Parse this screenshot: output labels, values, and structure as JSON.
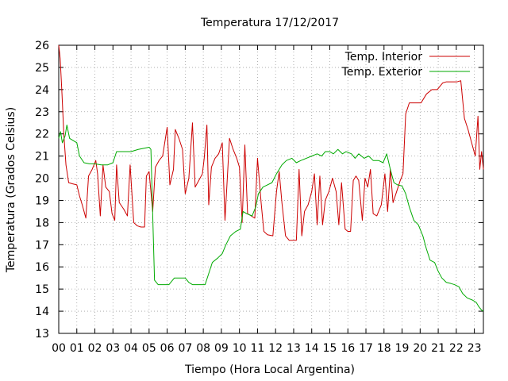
{
  "chart_data": {
    "type": "line",
    "title": "Temperatura 17/12/2017",
    "xlabel": "Tiempo (Hora Local Argentina)",
    "ylabel": "Temperatura (Grados Celsius)",
    "xlim": [
      0,
      23.5
    ],
    "ylim": [
      13,
      26
    ],
    "xticks": [
      "00",
      "01",
      "02",
      "03",
      "04",
      "05",
      "06",
      "07",
      "08",
      "09",
      "10",
      "11",
      "12",
      "13",
      "14",
      "15",
      "16",
      "17",
      "18",
      "19",
      "20",
      "21",
      "22",
      "23"
    ],
    "yticks": [
      13,
      14,
      15,
      16,
      17,
      18,
      19,
      20,
      21,
      22,
      23,
      24,
      25,
      26
    ],
    "grid": true,
    "legend_position": "top-right",
    "series": [
      {
        "name": "Temp. Interior",
        "color": "#cc0000",
        "points": [
          [
            0.0,
            26.0
          ],
          [
            0.08,
            25.4
          ],
          [
            0.18,
            23.8
          ],
          [
            0.28,
            22.0
          ],
          [
            0.4,
            20.6
          ],
          [
            0.55,
            19.8
          ],
          [
            0.75,
            19.75
          ],
          [
            1.0,
            19.7
          ],
          [
            1.15,
            19.2
          ],
          [
            1.3,
            18.8
          ],
          [
            1.5,
            18.2
          ],
          [
            1.65,
            20.1
          ],
          [
            1.85,
            20.4
          ],
          [
            2.05,
            20.8
          ],
          [
            2.15,
            20.2
          ],
          [
            2.3,
            18.3
          ],
          [
            2.45,
            20.6
          ],
          [
            2.6,
            19.6
          ],
          [
            2.8,
            19.4
          ],
          [
            2.95,
            18.4
          ],
          [
            3.1,
            18.1
          ],
          [
            3.2,
            20.6
          ],
          [
            3.35,
            18.9
          ],
          [
            3.6,
            18.6
          ],
          [
            3.8,
            18.3
          ],
          [
            3.95,
            20.6
          ],
          [
            4.15,
            18.0
          ],
          [
            4.35,
            17.85
          ],
          [
            4.55,
            17.8
          ],
          [
            4.75,
            17.8
          ],
          [
            4.85,
            20.1
          ],
          [
            5.0,
            20.3
          ],
          [
            5.2,
            18.5
          ],
          [
            5.35,
            20.5
          ],
          [
            5.55,
            20.8
          ],
          [
            5.75,
            21.0
          ],
          [
            6.0,
            22.3
          ],
          [
            6.15,
            19.7
          ],
          [
            6.35,
            20.4
          ],
          [
            6.45,
            22.2
          ],
          [
            6.65,
            21.8
          ],
          [
            6.85,
            21.3
          ],
          [
            7.0,
            19.3
          ],
          [
            7.2,
            20.0
          ],
          [
            7.4,
            22.5
          ],
          [
            7.55,
            19.6
          ],
          [
            7.75,
            19.9
          ],
          [
            7.95,
            20.2
          ],
          [
            8.05,
            20.9
          ],
          [
            8.2,
            22.4
          ],
          [
            8.3,
            18.8
          ],
          [
            8.45,
            20.5
          ],
          [
            8.65,
            20.9
          ],
          [
            8.85,
            21.1
          ],
          [
            9.05,
            21.6
          ],
          [
            9.2,
            18.1
          ],
          [
            9.45,
            21.8
          ],
          [
            9.65,
            21.3
          ],
          [
            9.85,
            20.9
          ],
          [
            10.0,
            20.5
          ],
          [
            10.15,
            18.0
          ],
          [
            10.3,
            21.5
          ],
          [
            10.45,
            18.4
          ],
          [
            10.65,
            18.3
          ],
          [
            10.85,
            18.2
          ],
          [
            11.0,
            20.9
          ],
          [
            11.2,
            18.9
          ],
          [
            11.35,
            17.6
          ],
          [
            11.55,
            17.45
          ],
          [
            11.85,
            17.4
          ],
          [
            12.05,
            19.4
          ],
          [
            12.2,
            20.3
          ],
          [
            12.35,
            18.9
          ],
          [
            12.55,
            17.4
          ],
          [
            12.75,
            17.2
          ],
          [
            12.95,
            17.2
          ],
          [
            13.15,
            17.2
          ],
          [
            13.3,
            20.4
          ],
          [
            13.45,
            17.4
          ],
          [
            13.6,
            18.5
          ],
          [
            13.8,
            18.8
          ],
          [
            14.0,
            19.4
          ],
          [
            14.15,
            20.2
          ],
          [
            14.3,
            17.9
          ],
          [
            14.45,
            20.1
          ],
          [
            14.6,
            17.9
          ],
          [
            14.75,
            19.0
          ],
          [
            14.95,
            19.4
          ],
          [
            15.15,
            20.0
          ],
          [
            15.35,
            19.4
          ],
          [
            15.5,
            17.9
          ],
          [
            15.65,
            19.8
          ],
          [
            15.85,
            17.7
          ],
          [
            16.0,
            17.6
          ],
          [
            16.15,
            17.6
          ],
          [
            16.3,
            19.9
          ],
          [
            16.45,
            20.1
          ],
          [
            16.6,
            19.9
          ],
          [
            16.8,
            18.1
          ],
          [
            16.95,
            20.0
          ],
          [
            17.1,
            19.6
          ],
          [
            17.25,
            20.4
          ],
          [
            17.4,
            18.4
          ],
          [
            17.6,
            18.3
          ],
          [
            17.85,
            18.8
          ],
          [
            18.05,
            20.2
          ],
          [
            18.2,
            18.5
          ],
          [
            18.35,
            20.4
          ],
          [
            18.5,
            18.9
          ],
          [
            18.7,
            19.4
          ],
          [
            18.9,
            19.9
          ],
          [
            19.05,
            20.2
          ],
          [
            19.2,
            22.9
          ],
          [
            19.4,
            23.4
          ],
          [
            19.75,
            23.4
          ],
          [
            20.05,
            23.4
          ],
          [
            20.35,
            23.8
          ],
          [
            20.65,
            24.0
          ],
          [
            20.95,
            24.0
          ],
          [
            21.25,
            24.3
          ],
          [
            21.45,
            24.35
          ],
          [
            21.75,
            24.35
          ],
          [
            22.05,
            24.35
          ],
          [
            22.25,
            24.4
          ],
          [
            22.45,
            22.7
          ],
          [
            22.65,
            22.2
          ],
          [
            22.85,
            21.6
          ],
          [
            23.05,
            21.0
          ],
          [
            23.2,
            22.8
          ],
          [
            23.3,
            20.4
          ],
          [
            23.4,
            21.2
          ],
          [
            23.5,
            20.4
          ]
        ]
      },
      {
        "name": "Temp. Exterior",
        "color": "#00aa00",
        "points": [
          [
            0.0,
            21.8
          ],
          [
            0.1,
            22.1
          ],
          [
            0.2,
            21.6
          ],
          [
            0.35,
            21.9
          ],
          [
            0.45,
            22.4
          ],
          [
            0.6,
            21.8
          ],
          [
            0.8,
            21.7
          ],
          [
            1.0,
            21.6
          ],
          [
            1.15,
            21.0
          ],
          [
            1.4,
            20.7
          ],
          [
            1.7,
            20.65
          ],
          [
            2.0,
            20.65
          ],
          [
            2.35,
            20.6
          ],
          [
            2.7,
            20.6
          ],
          [
            3.0,
            20.7
          ],
          [
            3.2,
            21.2
          ],
          [
            3.6,
            21.2
          ],
          [
            4.0,
            21.2
          ],
          [
            4.2,
            21.25
          ],
          [
            4.4,
            21.3
          ],
          [
            4.7,
            21.35
          ],
          [
            5.0,
            21.4
          ],
          [
            5.1,
            21.3
          ],
          [
            5.3,
            15.4
          ],
          [
            5.5,
            15.2
          ],
          [
            5.8,
            15.2
          ],
          [
            6.1,
            15.2
          ],
          [
            6.4,
            15.5
          ],
          [
            6.7,
            15.5
          ],
          [
            7.0,
            15.5
          ],
          [
            7.2,
            15.3
          ],
          [
            7.4,
            15.2
          ],
          [
            7.8,
            15.2
          ],
          [
            8.1,
            15.2
          ],
          [
            8.3,
            15.7
          ],
          [
            8.5,
            16.2
          ],
          [
            8.8,
            16.4
          ],
          [
            9.05,
            16.6
          ],
          [
            9.25,
            17.0
          ],
          [
            9.5,
            17.4
          ],
          [
            9.8,
            17.6
          ],
          [
            10.05,
            17.7
          ],
          [
            10.2,
            18.5
          ],
          [
            10.4,
            18.4
          ],
          [
            10.7,
            18.3
          ],
          [
            10.9,
            18.7
          ],
          [
            11.05,
            19.3
          ],
          [
            11.3,
            19.6
          ],
          [
            11.55,
            19.7
          ],
          [
            11.8,
            19.8
          ],
          [
            12.05,
            20.2
          ],
          [
            12.35,
            20.6
          ],
          [
            12.6,
            20.8
          ],
          [
            12.9,
            20.9
          ],
          [
            13.15,
            20.7
          ],
          [
            13.4,
            20.8
          ],
          [
            13.7,
            20.9
          ],
          [
            14.0,
            21.0
          ],
          [
            14.3,
            21.1
          ],
          [
            14.55,
            21.0
          ],
          [
            14.75,
            21.2
          ],
          [
            15.0,
            21.2
          ],
          [
            15.2,
            21.1
          ],
          [
            15.45,
            21.3
          ],
          [
            15.7,
            21.1
          ],
          [
            15.9,
            21.2
          ],
          [
            16.2,
            21.1
          ],
          [
            16.4,
            20.9
          ],
          [
            16.6,
            21.1
          ],
          [
            16.9,
            20.9
          ],
          [
            17.15,
            21.0
          ],
          [
            17.4,
            20.8
          ],
          [
            17.7,
            20.8
          ],
          [
            17.95,
            20.7
          ],
          [
            18.15,
            21.1
          ],
          [
            18.35,
            20.4
          ],
          [
            18.55,
            19.8
          ],
          [
            18.75,
            19.7
          ],
          [
            19.0,
            19.65
          ],
          [
            19.2,
            19.3
          ],
          [
            19.4,
            18.7
          ],
          [
            19.65,
            18.1
          ],
          [
            19.9,
            17.9
          ],
          [
            20.15,
            17.4
          ],
          [
            20.35,
            16.8
          ],
          [
            20.55,
            16.3
          ],
          [
            20.8,
            16.2
          ],
          [
            21.0,
            15.8
          ],
          [
            21.2,
            15.5
          ],
          [
            21.45,
            15.3
          ],
          [
            21.7,
            15.25
          ],
          [
            21.9,
            15.2
          ],
          [
            22.15,
            15.1
          ],
          [
            22.35,
            14.8
          ],
          [
            22.6,
            14.6
          ],
          [
            22.9,
            14.5
          ],
          [
            23.1,
            14.4
          ],
          [
            23.25,
            14.2
          ],
          [
            23.4,
            14.05
          ],
          [
            23.5,
            14.0
          ]
        ]
      }
    ]
  }
}
